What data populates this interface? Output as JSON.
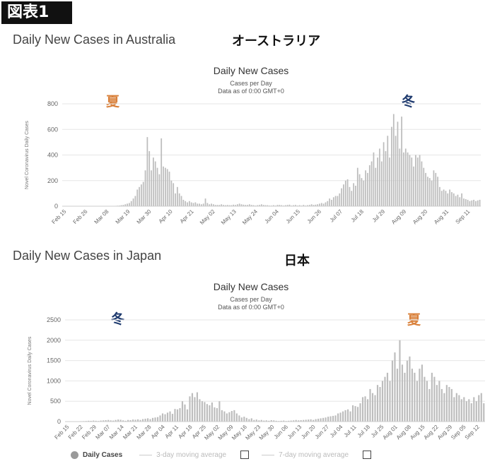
{
  "figure_tag": "図表1",
  "panels": {
    "australia": {
      "heading": "Daily New Cases in Australia",
      "heading_jp": "オーストラリア",
      "season_left": "夏",
      "season_right": "冬",
      "season_left_color": "#d9803a",
      "season_right_color": "#1e3a6e"
    },
    "japan": {
      "heading": "Daily New Cases in Japan",
      "heading_jp": "日本",
      "season_left": "冬",
      "season_right": "夏",
      "season_left_color": "#1e3a6e",
      "season_right_color": "#d9803a"
    }
  },
  "legend": {
    "daily": "Daily Cases",
    "avg3": "3-day moving average",
    "avg7": "7-day moving average"
  },
  "chart_data": [
    {
      "type": "bar",
      "title": "Daily New Cases",
      "subtitle": "Cases per Day",
      "subtitle2": "Data as of 0:00 GMT+0",
      "ylabel": "Novel Coronavirus Daily Cases",
      "ylim": [
        0,
        800
      ],
      "yticks": [
        0,
        200,
        400,
        600,
        800
      ],
      "xticks": [
        "Feb 15",
        "Feb 26",
        "Mar 08",
        "Mar 19",
        "Mar 30",
        "Apr 10",
        "Apr 21",
        "May 02",
        "May 13",
        "May 24",
        "Jun 04",
        "Jun 15",
        "Jun 26",
        "Jul 07",
        "Jul 18",
        "Jul 29",
        "Aug 09",
        "Aug 20",
        "Aug 31",
        "Sep 11"
      ],
      "bar_color": "#bdbdbd",
      "values": [
        0,
        0,
        0,
        0,
        0,
        0,
        0,
        0,
        0,
        0,
        0,
        0,
        0,
        0,
        0,
        0,
        0,
        0,
        0,
        0,
        0,
        0,
        0,
        1,
        0,
        2,
        3,
        4,
        5,
        8,
        10,
        15,
        20,
        25,
        40,
        60,
        80,
        130,
        150,
        170,
        190,
        280,
        540,
        430,
        280,
        380,
        350,
        300,
        250,
        530,
        310,
        300,
        290,
        270,
        200,
        180,
        100,
        150,
        100,
        80,
        50,
        40,
        30,
        40,
        30,
        25,
        30,
        20,
        20,
        15,
        20,
        60,
        25,
        15,
        20,
        15,
        10,
        10,
        10,
        15,
        10,
        8,
        10,
        8,
        8,
        12,
        10,
        15,
        20,
        15,
        12,
        10,
        10,
        15,
        10,
        8,
        5,
        8,
        10,
        15,
        10,
        8,
        8,
        5,
        5,
        8,
        5,
        10,
        10,
        8,
        5,
        8,
        10,
        12,
        5,
        8,
        10,
        5,
        8,
        5,
        10,
        5,
        8,
        10,
        15,
        10,
        12,
        15,
        20,
        25,
        20,
        30,
        40,
        60,
        50,
        70,
        80,
        80,
        100,
        140,
        170,
        200,
        210,
        150,
        120,
        180,
        160,
        300,
        250,
        220,
        200,
        280,
        260,
        320,
        350,
        420,
        300,
        380,
        450,
        350,
        500,
        430,
        550,
        380,
        620,
        720,
        550,
        660,
        450,
        700,
        420,
        450,
        420,
        400,
        380,
        310,
        400,
        380,
        400,
        350,
        300,
        260,
        230,
        220,
        200,
        280,
        260,
        230,
        150,
        120,
        130,
        120,
        100,
        130,
        110,
        100,
        80,
        90,
        70,
        100,
        60,
        55,
        50,
        40,
        45,
        50,
        40,
        45,
        50
      ]
    },
    {
      "type": "bar",
      "title": "Daily New Cases",
      "subtitle": "Cases per Day",
      "subtitle2": "Data as of 0:00 GMT+0",
      "ylabel": "Novel Coronavirus Daily Cases",
      "ylim": [
        0,
        2500
      ],
      "yticks": [
        0,
        500,
        1000,
        1500,
        2000,
        2500
      ],
      "xticks": [
        "Feb 15",
        "Feb 22",
        "Feb 29",
        "Mar 07",
        "Mar 14",
        "Mar 21",
        "Mar 28",
        "Apr 04",
        "Apr 11",
        "Apr 18",
        "Apr 25",
        "May 02",
        "May 09",
        "May 16",
        "May 23",
        "May 30",
        "Jun 06",
        "Jun 13",
        "Jun 20",
        "Jun 27",
        "Jul 04",
        "Jul 11",
        "Jul 18",
        "Jul 25",
        "Aug 01",
        "Aug 08",
        "Aug 15",
        "Aug 22",
        "Aug 29",
        "Sep 05",
        "Sep 12"
      ],
      "bar_color": "#bdbdbd",
      "values": [
        2,
        3,
        5,
        2,
        4,
        8,
        10,
        12,
        15,
        20,
        18,
        25,
        20,
        15,
        25,
        30,
        35,
        40,
        30,
        25,
        40,
        50,
        45,
        30,
        20,
        40,
        35,
        50,
        45,
        55,
        40,
        60,
        70,
        80,
        60,
        90,
        100,
        110,
        150,
        200,
        180,
        220,
        250,
        190,
        310,
        300,
        330,
        500,
        420,
        300,
        620,
        700,
        600,
        720,
        550,
        500,
        480,
        430,
        400,
        470,
        350,
        330,
        500,
        280,
        250,
        200,
        230,
        260,
        280,
        200,
        150,
        100,
        120,
        90,
        60,
        80,
        40,
        50,
        30,
        40,
        25,
        30,
        20,
        35,
        30,
        20,
        15,
        20,
        25,
        15,
        20,
        25,
        30,
        40,
        30,
        35,
        40,
        45,
        50,
        55,
        40,
        60,
        70,
        80,
        90,
        100,
        120,
        130,
        140,
        150,
        200,
        220,
        250,
        280,
        300,
        250,
        400,
        380,
        360,
        450,
        600,
        620,
        550,
        800,
        700,
        650,
        900,
        850,
        1000,
        1100,
        1200,
        1000,
        1500,
        1700,
        1300,
        2000,
        1400,
        1200,
        1500,
        1600,
        1300,
        1200,
        1000,
        1300,
        1400,
        1100,
        1000,
        800,
        1200,
        1100,
        900,
        1000,
        800,
        700,
        900,
        850,
        800,
        600,
        700,
        650,
        550,
        600,
        500,
        550,
        450,
        600,
        500,
        650,
        700,
        450
      ]
    }
  ]
}
